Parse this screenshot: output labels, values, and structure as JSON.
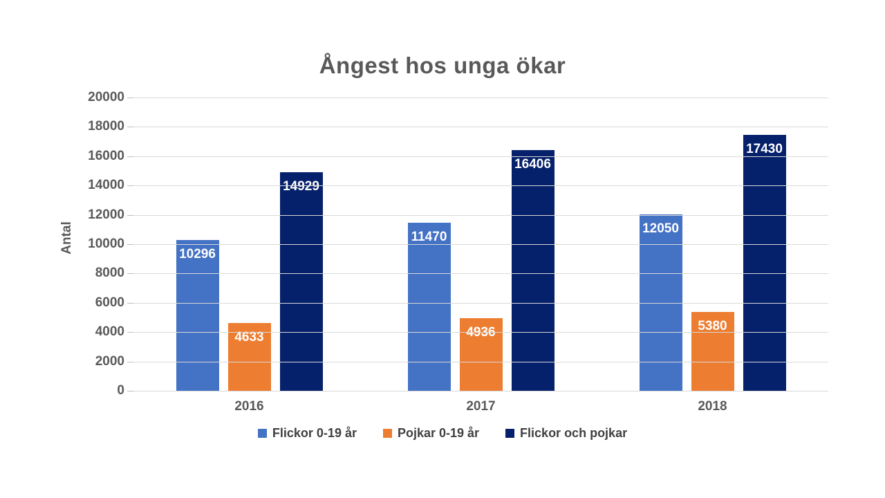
{
  "chart_data": {
    "type": "bar",
    "title": "Ångest hos unga ökar",
    "xlabel": "",
    "ylabel": "Antal",
    "categories": [
      "2016",
      "2017",
      "2018"
    ],
    "series": [
      {
        "name": "Flickor 0-19 år",
        "color": "#4472C4",
        "values": [
          10296,
          11470,
          12050
        ]
      },
      {
        "name": "Pojkar 0-19 år",
        "color": "#ED7D31",
        "values": [
          4633,
          4936,
          5380
        ]
      },
      {
        "name": "Flickor och pojkar",
        "color": "#06216B",
        "values": [
          14929,
          16406,
          17430
        ]
      }
    ],
    "ylim": [
      0,
      20000
    ],
    "ytick_step": 2000,
    "grid": true,
    "legend_position": "bottom",
    "data_labels": "inside-end-white"
  },
  "colors": {
    "background": "#FFFFFF",
    "title_text": "#595959",
    "axis_text": "#595959",
    "legend_text": "#404040",
    "gridline": "#D9D9D9",
    "data_label_text": "#FFFFFF"
  }
}
